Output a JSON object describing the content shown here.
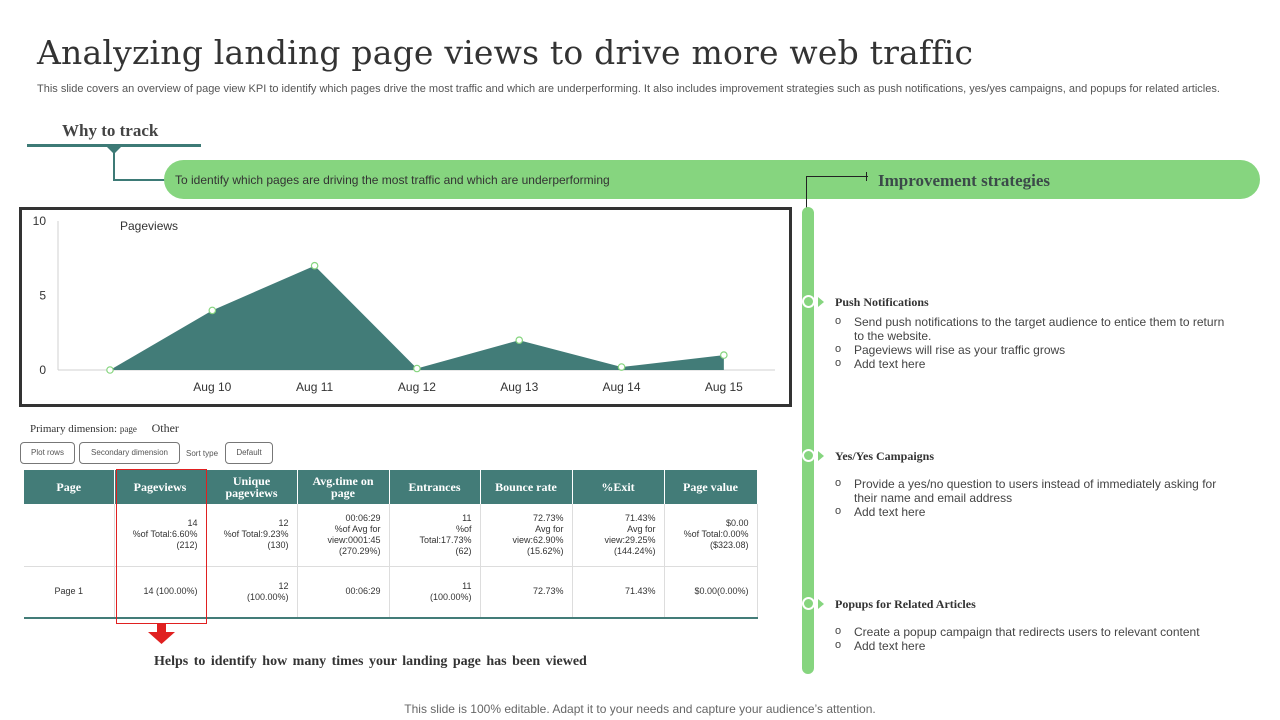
{
  "slide": {
    "title": "Analyzing landing page views to drive more web traffic",
    "subtitle": "This slide covers an overview of page view KPI to identify which pages drive the most traffic and which are underperforming. It also includes improvement strategies such as push notifications, yes/yes campaigns, and popups for related articles.",
    "footer": "This slide is 100% editable. Adapt it to your needs and capture your audience’s attention."
  },
  "why_track": {
    "heading": "Why to track",
    "text": "To identify which pages are driving the most traffic and which are underperforming"
  },
  "improvement": {
    "heading": "Improvement strategies",
    "strategies": [
      {
        "title": "Push Notifications",
        "bullets": [
          "Send push notifications to the target audience to entice them to return to the website.",
          "Pageviews will rise as your traffic grows",
          "Add text here"
        ]
      },
      {
        "title": "Yes/Yes Campaigns",
        "bullets": [
          "Provide a yes/no question to users instead of immediately asking for their name and email address",
          "Add text here"
        ]
      },
      {
        "title": "Popups  for Related  Articles",
        "bullets": [
          "Create a popup campaign that redirects users to relevant content",
          "Add text here"
        ]
      }
    ]
  },
  "chart_data": {
    "type": "area",
    "series": [
      {
        "name": "Pageviews",
        "x": [
          0,
          1,
          2,
          3,
          4,
          5,
          6
        ],
        "values": [
          0,
          4,
          7,
          0.1,
          2,
          0.2,
          1
        ]
      }
    ],
    "xticks": [
      {
        "x": 1,
        "label": "Aug 10"
      },
      {
        "x": 2,
        "label": "Aug 11"
      },
      {
        "x": 3,
        "label": "Aug 12"
      },
      {
        "x": 4,
        "label": "Aug 13"
      },
      {
        "x": 5,
        "label": "Aug 14"
      },
      {
        "x": 6,
        "label": "Aug 15"
      }
    ],
    "yticks": [
      0,
      5,
      10
    ],
    "ylim": [
      0,
      10
    ],
    "xlim": [
      0,
      6.5
    ],
    "title": "",
    "xlabel": "",
    "ylabel": "",
    "fill_color": "#427c78",
    "marker_color": "#86d57f",
    "grid": false,
    "legend": "top-left"
  },
  "controls": {
    "primary_dimension_label": "Primary dimension:",
    "primary_dimension_value": "page",
    "other_label": "Other",
    "plot_rows": "Plot rows",
    "secondary_dimension": "Secondary  dimension",
    "sort_type": "Sort type",
    "default": "Default"
  },
  "table": {
    "headers": [
      "Page",
      "Pageviews",
      "Unique pageviews",
      "Avg.time on page",
      "Entrances",
      "Bounce rate",
      "%Exit",
      "Page value"
    ],
    "rows": [
      [
        "",
        "14\n%of Total:6.60%\n(212)",
        "12\n%of Total:9.23%\n(130)",
        "00:06:29\n%of Avg for\nview:0001:45\n(270.29%)",
        "11\n%of\nTotal:17.73%\n(62)",
        "72.73%\nAvg for\nview:62.90%\n(15.62%)",
        "71.43%\nAvg for\nview:29.25%\n(144.24%)",
        "$0.00\n%of Total:0.00%\n($323.08)"
      ],
      [
        "Page 1",
        "14 (100.00%)",
        "12\n(100.00%)",
        "00:06:29",
        "11\n(100.00%)",
        "72.73%",
        "71.43%",
        "$0.00(0.00%)"
      ]
    ]
  },
  "callout": {
    "text": "Helps to identify  how  many  times  your  landing  page  has been  viewed",
    "arrow_color": "#e02020"
  },
  "colors": {
    "green": "#86d57f",
    "teal": "#437c78",
    "dark": "#333333"
  }
}
